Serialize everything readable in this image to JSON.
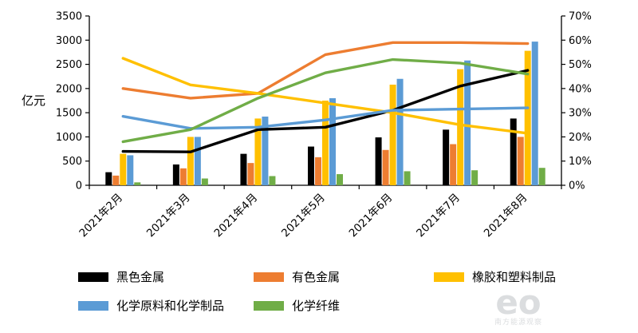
{
  "chart_data": {
    "type": "bar",
    "subtype": "combo-bar-line",
    "title": "",
    "categories": [
      "2021年2月",
      "2021年3月",
      "2021年4月",
      "2021年5月",
      "2021年6月",
      "2021年7月",
      "2021年8月"
    ],
    "left_axis": {
      "label": "亿元",
      "min": 0,
      "max": 3500,
      "step": 500,
      "tick_labels": [
        "0",
        "500",
        "1000",
        "1500",
        "2000",
        "2500",
        "3000",
        "3500"
      ]
    },
    "right_axis": {
      "min": 0,
      "max": 70,
      "step": 10,
      "suffix": "%",
      "tick_labels": [
        "0%",
        "10%",
        "20%",
        "30%",
        "40%",
        "50%",
        "60%",
        "70%"
      ]
    },
    "grid": false,
    "legend_position": "bottom",
    "bar_series": [
      {
        "name": "黑色金属",
        "color": "#000000",
        "axis": "left",
        "values": [
          270,
          430,
          650,
          800,
          990,
          1150,
          1380
        ]
      },
      {
        "name": "有色金属",
        "color": "#ED7D31",
        "axis": "left",
        "values": [
          200,
          350,
          460,
          580,
          730,
          850,
          1000
        ]
      },
      {
        "name": "橡胶和塑料制品",
        "color": "#FFC000",
        "axis": "left",
        "values": [
          650,
          1000,
          1380,
          1750,
          2080,
          2400,
          2780
        ]
      },
      {
        "name": "化学原料和化学制品",
        "color": "#5B9BD5",
        "axis": "left",
        "values": [
          620,
          1000,
          1420,
          1800,
          2200,
          2580,
          2970
        ]
      },
      {
        "name": "化学纤维",
        "color": "#70AD47",
        "axis": "left",
        "values": [
          60,
          140,
          190,
          230,
          290,
          310,
          360
        ]
      }
    ],
    "line_series": [
      {
        "name": "黑色金属",
        "color": "#000000",
        "axis": "right",
        "values": [
          14,
          13.8,
          23,
          24,
          31,
          41,
          47.5
        ]
      },
      {
        "name": "有色金属",
        "color": "#ED7D31",
        "axis": "right",
        "values": [
          40,
          36,
          38,
          54,
          59,
          59,
          58.6
        ]
      },
      {
        "name": "橡胶和塑料制品",
        "color": "#FFC000",
        "axis": "right",
        "values": [
          52.5,
          41.5,
          38,
          34,
          30,
          25,
          21.5
        ]
      },
      {
        "name": "化学原料和化学制品",
        "color": "#5B9BD5",
        "axis": "right",
        "values": [
          28.5,
          23.5,
          24,
          27,
          31,
          31.5,
          32
        ]
      },
      {
        "name": "化学纤维",
        "color": "#70AD47",
        "axis": "right",
        "values": [
          18,
          23,
          36,
          46.5,
          52,
          50.5,
          46
        ]
      }
    ],
    "legend": [
      "黑色金属",
      "有色金属",
      "橡胶和塑料制品",
      "化学原料和化学制品",
      "化学纤维"
    ],
    "legend_colors": [
      "#000000",
      "#ED7D31",
      "#FFC000",
      "#5B9BD5",
      "#70AD47"
    ]
  },
  "watermark": {
    "large": "eo",
    "small": "南方能源观察"
  }
}
